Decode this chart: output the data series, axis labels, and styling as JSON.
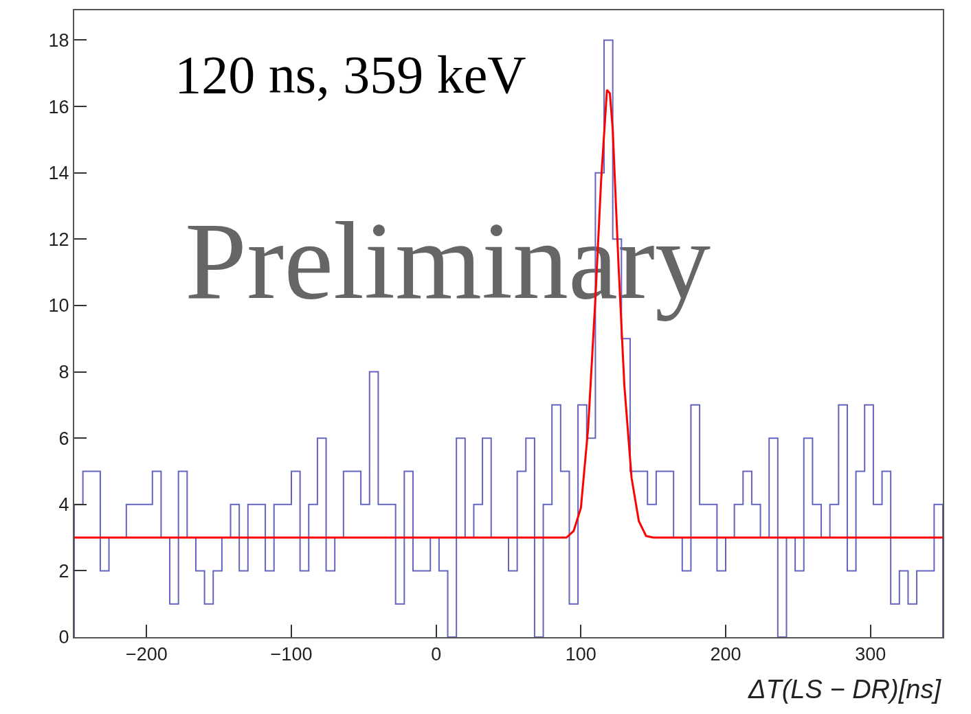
{
  "chart_data": {
    "type": "histogram",
    "xlabel": "ΔT(LS − DR)[ns]",
    "annotations": [
      "120 ns, 359 keV",
      "Preliminary"
    ],
    "xlim": [
      -250,
      350
    ],
    "xticks": [
      -200,
      -100,
      0,
      100,
      200,
      300
    ],
    "ylim": [
      0,
      18.9
    ],
    "yticks": [
      0,
      2,
      4,
      6,
      8,
      10,
      12,
      14,
      16,
      18
    ],
    "series": [
      {
        "type": "histogram",
        "color": "#6464c0",
        "bins": [
          -250,
          -244,
          -238,
          -232,
          -226,
          -220,
          -214,
          -208,
          -202,
          -196,
          -190,
          -184,
          -178,
          -172,
          -166,
          -160,
          -154,
          -148,
          -142,
          -136,
          -130,
          -124,
          -118,
          -112,
          -106,
          -100,
          -94,
          -88,
          -82,
          -76,
          -70,
          -64,
          -58,
          -52,
          -46,
          -40,
          -34,
          -28,
          -22,
          -16,
          -10,
          -4,
          2,
          8,
          14,
          20,
          26,
          32,
          38,
          44,
          50,
          56,
          62,
          68,
          74,
          80,
          86,
          92,
          98,
          104,
          110,
          116,
          122,
          128,
          134,
          140,
          146,
          152,
          158,
          164,
          170,
          176,
          182,
          188,
          194,
          200,
          206,
          212,
          218,
          224,
          230,
          236,
          242,
          248,
          254,
          260,
          266,
          272,
          278,
          284,
          290,
          296,
          302,
          308,
          314,
          320,
          326,
          332,
          338,
          344,
          350
        ],
        "values": [
          4,
          5,
          5,
          2,
          3,
          3,
          4,
          4,
          4,
          5,
          3,
          1,
          5,
          3,
          2,
          1,
          2,
          3,
          4,
          2,
          4,
          4,
          2,
          4,
          4,
          5,
          2,
          4,
          6,
          2,
          3,
          5,
          5,
          4,
          8,
          4,
          4,
          1,
          5,
          2,
          2,
          3,
          2,
          0,
          6,
          3,
          4,
          6,
          3,
          3,
          2,
          5,
          6,
          0,
          4,
          7,
          5,
          1,
          7,
          6,
          14,
          18,
          12,
          9,
          5,
          5,
          4,
          5,
          5,
          3,
          2,
          7,
          4,
          4,
          2,
          3,
          4,
          5,
          4,
          3,
          6,
          0,
          3,
          2,
          6,
          4,
          3,
          4,
          7,
          2,
          5,
          7,
          4,
          5,
          1,
          2,
          1,
          2,
          2,
          4
        ]
      },
      {
        "type": "line",
        "color": "#ff0000",
        "x": [
          -250,
          90,
          95,
          100,
          105,
          110,
          114,
          118,
          120,
          122,
          126,
          130,
          135,
          140,
          145,
          150,
          350
        ],
        "values": [
          3,
          3,
          3.2,
          3.9,
          6.3,
          10.2,
          13.8,
          16.5,
          16.4,
          15.3,
          11.2,
          7.6,
          4.8,
          3.5,
          3.05,
          3,
          3
        ]
      }
    ]
  }
}
